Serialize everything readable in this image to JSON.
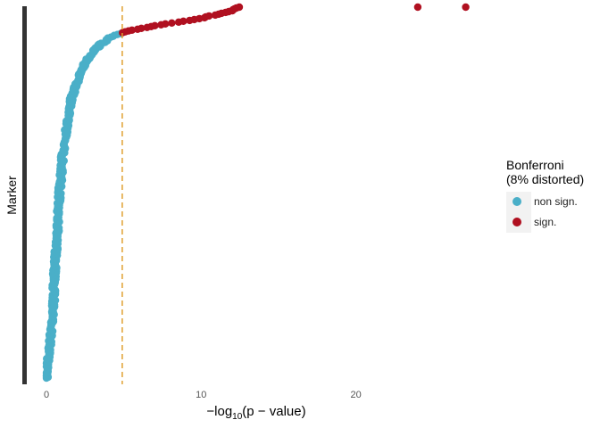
{
  "chart_data": {
    "type": "scatter",
    "description_x": "-log10(p-value)",
    "ylabel": "Marker",
    "xlim": [
      -1.5,
      35
    ],
    "ylim": [
      0,
      1
    ],
    "xticks": [
      0,
      10,
      20
    ],
    "threshold": 4.9,
    "legend": {
      "title_line1": "Bonferroni",
      "title_line2": "(8% distorted)",
      "position": "right",
      "entries": [
        {
          "label": "non sign.",
          "color": "#4aafc8"
        },
        {
          "label": "sign.",
          "color": "#b01020"
        }
      ]
    },
    "colors": {
      "nonsign": "#4aafc8",
      "sign": "#b01020",
      "threshold": "#e0a030",
      "axis_bar": "#333333"
    },
    "curve": {
      "note_cdf": "sorted markers, rank fraction (0 = bottom, 1 = top) vs -log10 p",
      "rank": [
        0.0,
        0.05,
        0.1,
        0.2,
        0.3,
        0.4,
        0.5,
        0.6,
        0.65,
        0.7,
        0.75,
        0.8,
        0.85,
        0.88,
        0.9,
        0.92,
        0.93,
        0.94,
        0.95,
        0.96,
        0.97,
        0.98,
        0.99,
        1.0
      ],
      "value": [
        0.0,
        0.1,
        0.25,
        0.45,
        0.55,
        0.7,
        0.85,
        1.05,
        1.2,
        1.4,
        1.6,
        2.0,
        2.5,
        3.0,
        3.5,
        4.2,
        4.9,
        5.8,
        7.0,
        8.5,
        10.0,
        11.0,
        12.0,
        12.5
      ]
    },
    "outliers": [
      {
        "value": 24.0,
        "rank": 1.0
      },
      {
        "value": 27.1,
        "rank": 1.0
      }
    ]
  }
}
